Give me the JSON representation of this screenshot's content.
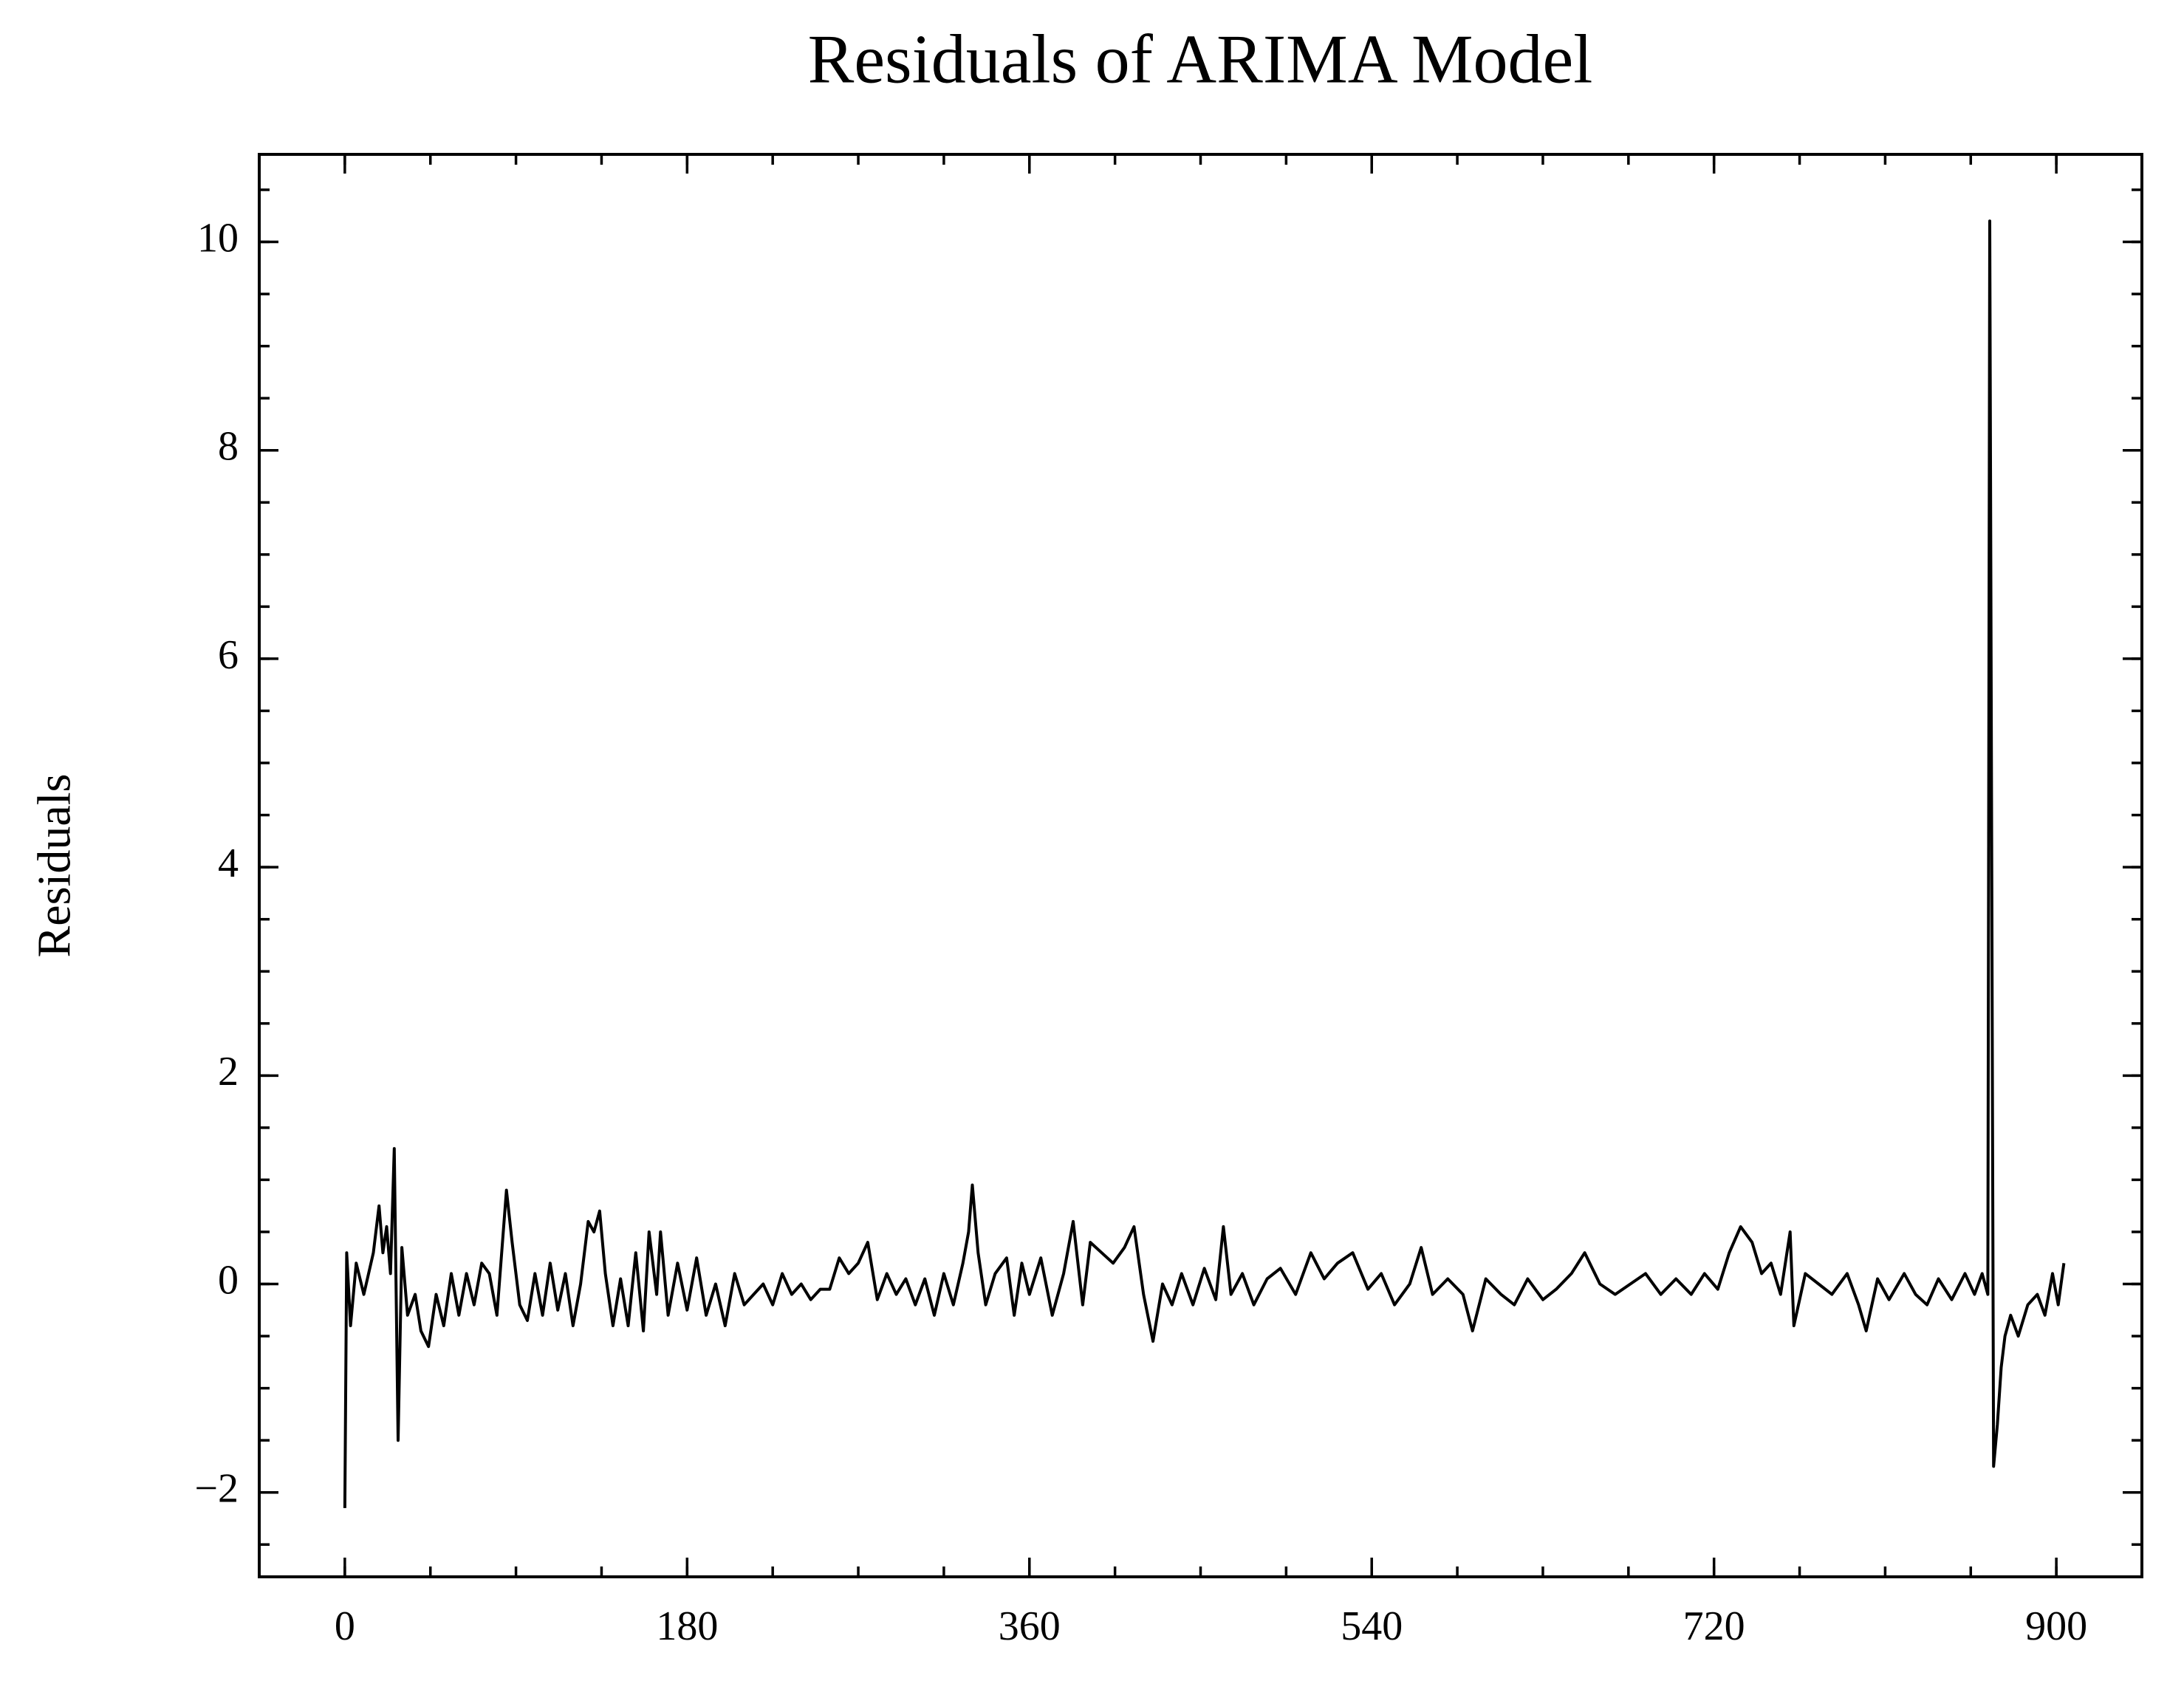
{
  "chart_data": {
    "type": "line",
    "title": "Residuals of ARIMA Model",
    "y_label": "Residuals",
    "x": [
      0,
      1,
      3,
      6,
      10,
      15,
      18,
      20,
      22,
      24,
      26,
      28,
      30,
      33,
      37,
      40,
      44,
      48,
      52,
      56,
      60,
      64,
      68,
      72,
      76,
      80,
      85,
      88,
      92,
      96,
      100,
      104,
      108,
      112,
      116,
      120,
      124,
      128,
      131,
      134,
      137,
      141,
      145,
      149,
      153,
      157,
      160,
      164,
      166,
      170,
      175,
      180,
      185,
      190,
      195,
      200,
      205,
      210,
      215,
      220,
      225,
      230,
      235,
      240,
      245,
      250,
      255,
      260,
      265,
      270,
      275,
      280,
      285,
      290,
      295,
      300,
      305,
      310,
      315,
      320,
      325,
      328,
      330,
      333,
      337,
      342,
      348,
      352,
      356,
      360,
      366,
      372,
      378,
      383,
      388,
      392,
      398,
      404,
      410,
      415,
      420,
      425,
      430,
      435,
      440,
      446,
      452,
      458,
      462,
      466,
      472,
      478,
      485,
      492,
      500,
      508,
      515,
      522,
      530,
      538,
      545,
      552,
      560,
      566,
      572,
      580,
      588,
      593,
      600,
      608,
      615,
      622,
      630,
      637,
      645,
      652,
      660,
      668,
      676,
      684,
      692,
      700,
      708,
      715,
      722,
      728,
      734,
      740,
      745,
      750,
      755,
      760,
      762,
      768,
      775,
      782,
      790,
      796,
      800,
      806,
      812,
      820,
      826,
      832,
      838,
      845,
      852,
      857,
      861,
      864,
      865,
      867,
      869,
      871,
      873,
      876,
      880,
      885,
      890,
      894,
      898,
      901,
      904
    ],
    "series": [
      {
        "name": "Residuals",
        "color": "#000000",
        "values": [
          -2.15,
          0.3,
          -0.4,
          0.2,
          -0.1,
          0.3,
          0.75,
          0.3,
          0.55,
          0.1,
          1.3,
          -1.5,
          0.35,
          -0.3,
          -0.1,
          -0.45,
          -0.6,
          -0.1,
          -0.4,
          0.1,
          -0.3,
          0.1,
          -0.2,
          0.2,
          0.1,
          -0.3,
          0.9,
          0.4,
          -0.2,
          -0.35,
          0.1,
          -0.3,
          0.2,
          -0.25,
          0.1,
          -0.4,
          0.0,
          0.6,
          0.5,
          0.7,
          0.1,
          -0.4,
          0.05,
          -0.4,
          0.3,
          -0.45,
          0.5,
          -0.1,
          0.5,
          -0.3,
          0.2,
          -0.25,
          0.25,
          -0.3,
          0.0,
          -0.4,
          0.1,
          -0.2,
          -0.1,
          0.0,
          -0.2,
          0.1,
          -0.1,
          0.0,
          -0.15,
          -0.05,
          -0.05,
          0.25,
          0.1,
          0.2,
          0.4,
          -0.15,
          0.1,
          -0.1,
          0.05,
          -0.2,
          0.05,
          -0.3,
          0.1,
          -0.2,
          0.2,
          0.5,
          0.95,
          0.3,
          -0.2,
          0.1,
          0.25,
          -0.3,
          0.2,
          -0.1,
          0.25,
          -0.3,
          0.1,
          0.6,
          -0.2,
          0.4,
          0.3,
          0.2,
          0.35,
          0.55,
          -0.1,
          -0.55,
          0.0,
          -0.2,
          0.1,
          -0.2,
          0.15,
          -0.15,
          0.55,
          -0.1,
          0.1,
          -0.2,
          0.05,
          0.15,
          -0.1,
          0.3,
          0.05,
          0.2,
          0.3,
          -0.05,
          0.1,
          -0.2,
          0.0,
          0.35,
          -0.1,
          0.05,
          -0.1,
          -0.45,
          0.05,
          -0.1,
          -0.2,
          0.05,
          -0.15,
          -0.05,
          0.1,
          0.3,
          0.0,
          -0.1,
          0.0,
          0.1,
          -0.1,
          0.05,
          -0.1,
          0.1,
          -0.05,
          0.3,
          0.55,
          0.4,
          0.1,
          0.2,
          -0.1,
          0.5,
          -0.4,
          0.1,
          0.0,
          -0.1,
          0.1,
          -0.2,
          -0.45,
          0.05,
          -0.15,
          0.1,
          -0.1,
          -0.2,
          0.05,
          -0.15,
          0.1,
          -0.1,
          0.1,
          -0.1,
          10.2,
          -1.75,
          -1.35,
          -0.8,
          -0.5,
          -0.3,
          -0.5,
          -0.2,
          -0.1,
          -0.3,
          0.1,
          -0.2,
          0.2
        ]
      }
    ],
    "xlim": [
      -45,
      945
    ],
    "ylim": [
      -2.81,
      10.84
    ],
    "xticks": [
      0,
      180,
      360,
      540,
      720,
      900
    ],
    "yticks": [
      {
        "value": -2,
        "label": "−2"
      },
      0,
      2,
      4,
      6,
      8,
      10
    ],
    "minor_tick_step": {
      "x": 45,
      "y": 0.5
    },
    "grid": false
  }
}
